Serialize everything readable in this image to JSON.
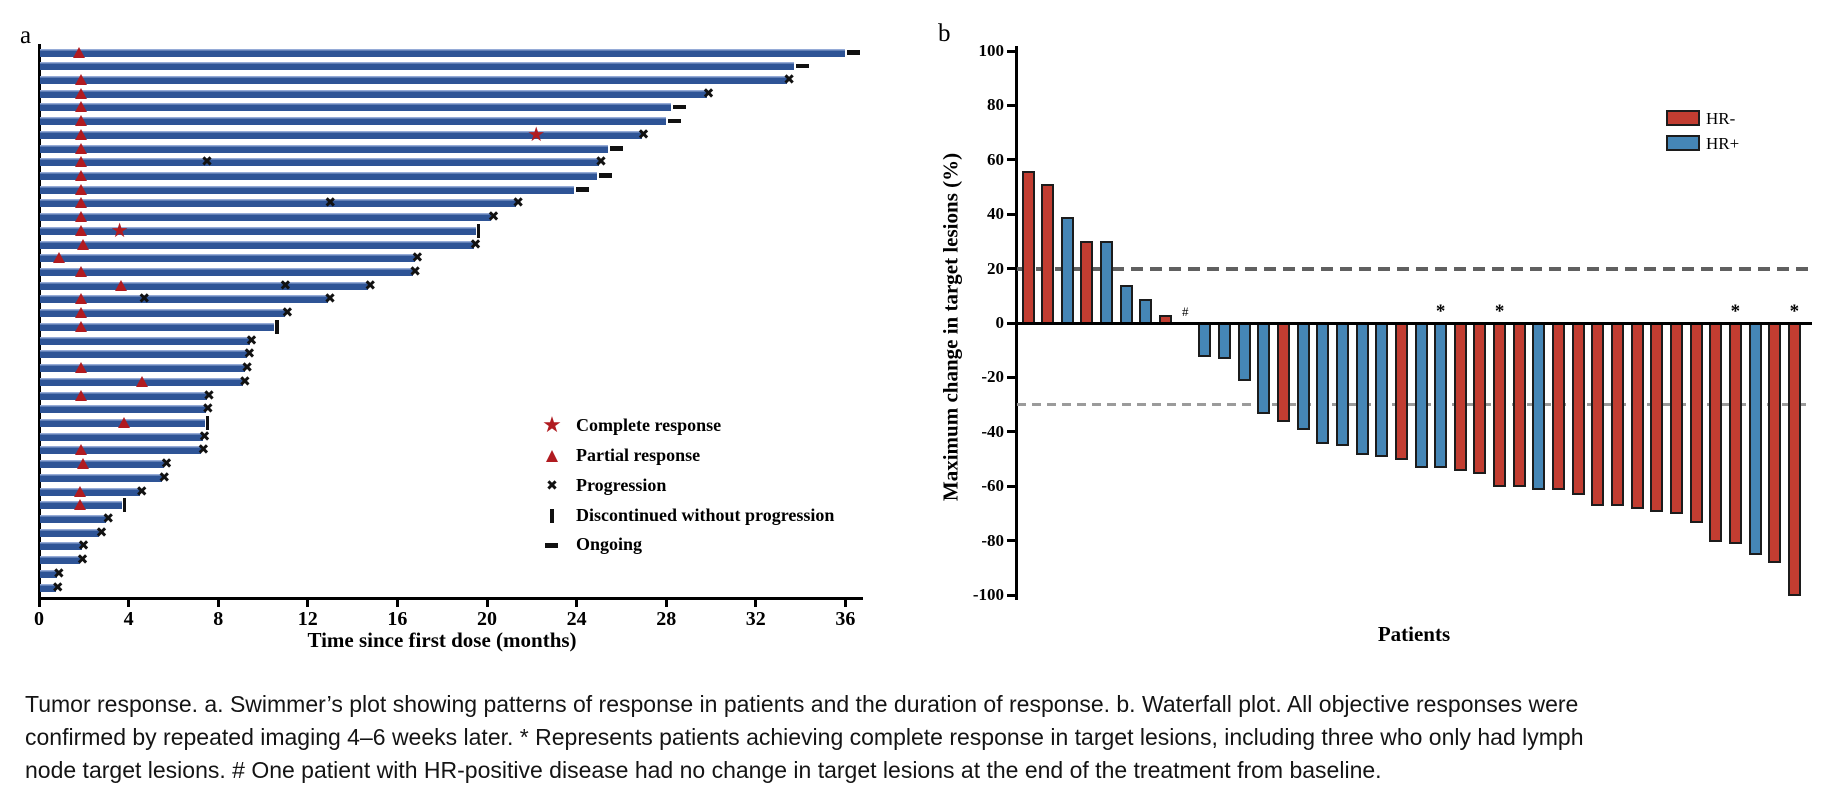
{
  "caption": {
    "line1": "Tumor response. a. Swimmer’s plot showing patterns of response in patients and the duration of response. b. Waterfall plot. All objective responses were",
    "line2": "confirmed by repeated imaging 4–6 weeks later. * Represents patients achieving complete response in target lesions, including three who only had lymph",
    "line3": "node target lesions. # One patient with HR-positive disease had no change in target lesions at the end of the treatment from baseline."
  },
  "colors": {
    "swimmer_bar": "#2e5496",
    "marker_red": "#b01b20",
    "hr_neg": "#c23d31",
    "hr_pos": "#4586b6",
    "bar_outline": "#1c1c1c",
    "dash_plus20": "#606060",
    "dash_minus30": "#9b9b9b"
  },
  "chart_data": [
    {
      "type": "swimmer",
      "panel": "a",
      "xlabel": "Time since first dose (months)",
      "xlim": [
        0,
        36.8
      ],
      "x_ticks": [
        0,
        4,
        8,
        12,
        16,
        20,
        24,
        28,
        32,
        36
      ],
      "legend": [
        {
          "symbol": "star",
          "label": "Complete response"
        },
        {
          "symbol": "triangle",
          "label": "Partial response"
        },
        {
          "symbol": "x",
          "label": "Progression"
        },
        {
          "symbol": "bar",
          "label": "Discontinued without progression"
        },
        {
          "symbol": "dash",
          "label": "Ongoing"
        }
      ],
      "bars": [
        {
          "d": 36.0,
          "pr": [
            1.8
          ],
          "end": "ongoing"
        },
        {
          "d": 33.7,
          "end": "ongoing"
        },
        {
          "d": 33.4,
          "pr": [
            1.9
          ],
          "end": "x"
        },
        {
          "d": 29.8,
          "pr": [
            1.9
          ],
          "end": "x"
        },
        {
          "d": 28.2,
          "pr": [
            1.9
          ],
          "end": "ongoing"
        },
        {
          "d": 28.0,
          "pr": [
            1.9
          ],
          "end": "ongoing"
        },
        {
          "d": 26.9,
          "pr": [
            1.9
          ],
          "cr": [
            22.2
          ],
          "end": "x"
        },
        {
          "d": 25.4,
          "pr": [
            1.9
          ],
          "end": "ongoing"
        },
        {
          "d": 25.0,
          "pr": [
            1.9
          ],
          "x": [
            7.5
          ],
          "end": "x"
        },
        {
          "d": 24.9,
          "pr": [
            1.9
          ],
          "end": "ongoing"
        },
        {
          "d": 23.9,
          "pr": [
            1.9
          ],
          "end": "ongoing"
        },
        {
          "d": 21.3,
          "pr": [
            1.9
          ],
          "x": [
            13.0
          ],
          "end": "x"
        },
        {
          "d": 20.2,
          "pr": [
            1.9
          ],
          "end": "x"
        },
        {
          "d": 19.5,
          "pr": [
            1.9
          ],
          "cr": [
            3.6
          ],
          "end": "disc"
        },
        {
          "d": 19.4,
          "pr": [
            2.0
          ],
          "end": "x"
        },
        {
          "d": 16.8,
          "pr": [
            0.9
          ],
          "end": "x"
        },
        {
          "d": 16.7,
          "pr": [
            1.9
          ],
          "end": "x"
        },
        {
          "d": 14.7,
          "pr": [
            3.7
          ],
          "x": [
            11.0
          ],
          "end": "x"
        },
        {
          "d": 12.9,
          "pr": [
            1.9
          ],
          "x": [
            4.7
          ],
          "end": "x"
        },
        {
          "d": 11.0,
          "pr": [
            1.9
          ],
          "end": "x"
        },
        {
          "d": 10.5,
          "pr": [
            1.9
          ],
          "end": "disc"
        },
        {
          "d": 9.4,
          "end": "x"
        },
        {
          "d": 9.3,
          "end": "x"
        },
        {
          "d": 9.2,
          "pr": [
            1.9
          ],
          "end": "x"
        },
        {
          "d": 9.1,
          "pr": [
            4.6
          ],
          "end": "x"
        },
        {
          "d": 7.5,
          "pr": [
            1.9
          ],
          "end": "x"
        },
        {
          "d": 7.45,
          "end": "x"
        },
        {
          "d": 7.4,
          "pr": [
            3.8
          ],
          "end": "disc"
        },
        {
          "d": 7.3,
          "end": "x"
        },
        {
          "d": 7.25,
          "pr": [
            1.9
          ],
          "end": "x"
        },
        {
          "d": 5.6,
          "pr": [
            2.0
          ],
          "end": "x"
        },
        {
          "d": 5.5,
          "end": "x"
        },
        {
          "d": 4.5,
          "pr": [
            1.85
          ],
          "end": "x"
        },
        {
          "d": 3.7,
          "pr": [
            1.85
          ],
          "end": "disc"
        },
        {
          "d": 3.0,
          "end": "x"
        },
        {
          "d": 2.7,
          "end": "x"
        },
        {
          "d": 1.9,
          "end": "x"
        },
        {
          "d": 1.85,
          "end": "x"
        },
        {
          "d": 0.8,
          "end": "x"
        },
        {
          "d": 0.75,
          "end": "x"
        }
      ]
    },
    {
      "type": "bar",
      "subtype": "waterfall",
      "panel": "b",
      "ylabel": "Maximum change in target lesions (%)",
      "xlabel": "Patients",
      "ylim": [
        -100,
        100
      ],
      "y_ticks": [
        100,
        80,
        60,
        40,
        20,
        0,
        -20,
        -40,
        -60,
        -80,
        -100
      ],
      "ref_lines": [
        20,
        -30
      ],
      "legend": [
        {
          "label": "HR-",
          "color_key": "hr_neg"
        },
        {
          "label": "HR+",
          "color_key": "hr_pos"
        }
      ],
      "bars": [
        {
          "v": 56,
          "hr": "neg"
        },
        {
          "v": 51,
          "hr": "neg"
        },
        {
          "v": 39,
          "hr": "pos"
        },
        {
          "v": 30,
          "hr": "neg"
        },
        {
          "v": 30,
          "hr": "pos"
        },
        {
          "v": 14,
          "hr": "pos"
        },
        {
          "v": 9,
          "hr": "pos"
        },
        {
          "v": 3,
          "hr": "neg"
        },
        {
          "v": 0,
          "hr": "pos",
          "note": "#"
        },
        {
          "v": -12,
          "hr": "pos"
        },
        {
          "v": -13,
          "hr": "pos"
        },
        {
          "v": -21,
          "hr": "pos"
        },
        {
          "v": -33,
          "hr": "pos"
        },
        {
          "v": -36,
          "hr": "neg"
        },
        {
          "v": -39,
          "hr": "pos"
        },
        {
          "v": -44,
          "hr": "pos"
        },
        {
          "v": -45,
          "hr": "pos"
        },
        {
          "v": -48,
          "hr": "pos"
        },
        {
          "v": -49,
          "hr": "pos"
        },
        {
          "v": -50,
          "hr": "neg"
        },
        {
          "v": -53,
          "hr": "pos"
        },
        {
          "v": -53,
          "hr": "pos",
          "note": "*"
        },
        {
          "v": -54,
          "hr": "neg"
        },
        {
          "v": -55,
          "hr": "neg"
        },
        {
          "v": -60,
          "hr": "neg",
          "note": "*"
        },
        {
          "v": -60,
          "hr": "neg"
        },
        {
          "v": -61,
          "hr": "pos"
        },
        {
          "v": -61,
          "hr": "neg"
        },
        {
          "v": -63,
          "hr": "neg"
        },
        {
          "v": -67,
          "hr": "neg"
        },
        {
          "v": -67,
          "hr": "neg"
        },
        {
          "v": -68,
          "hr": "neg"
        },
        {
          "v": -69,
          "hr": "neg"
        },
        {
          "v": -70,
          "hr": "neg"
        },
        {
          "v": -73,
          "hr": "neg"
        },
        {
          "v": -80,
          "hr": "neg"
        },
        {
          "v": -81,
          "hr": "neg",
          "note": "*"
        },
        {
          "v": -85,
          "hr": "pos"
        },
        {
          "v": -88,
          "hr": "neg"
        },
        {
          "v": -100,
          "hr": "neg",
          "note": "*"
        }
      ]
    }
  ]
}
